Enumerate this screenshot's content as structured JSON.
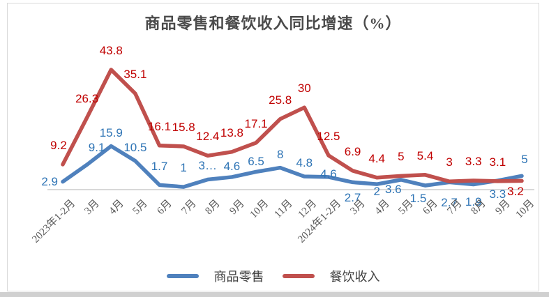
{
  "title": "商品零售和餐饮收入同比增速（%）",
  "colors": {
    "blue_line": "#4F81BD",
    "red_line": "#C0504D",
    "blue_label": "#2E74B5",
    "red_label": "#C00000",
    "axis_line": "#d8d8d8",
    "axis_text": "#595959",
    "title_text": "#4a4a4a",
    "frame_border": "#d9d9d9",
    "bottom_strip": "#d0d0d0"
  },
  "chart_data": {
    "type": "line",
    "title": "商品零售和餐饮收入同比增速（%）",
    "categories": [
      "2023年1-2月",
      "3月",
      "4月",
      "5月",
      "6月",
      "7月",
      "8月",
      "9月",
      "10月",
      "11月",
      "12月",
      "2024年1-2月",
      "3月",
      "4月",
      "5月",
      "6月",
      "7月",
      "8月",
      "9月",
      "10月"
    ],
    "series": [
      {
        "name": "商品零售",
        "color": "#4F81BD",
        "label_color": "#2E74B5",
        "values": [
          2.9,
          9.1,
          15.9,
          10.5,
          1.7,
          1,
          3.7,
          4.6,
          6.5,
          8,
          4.8,
          4.6,
          2.7,
          2,
          3.6,
          1.5,
          2.7,
          1.9,
          3.3,
          5
        ],
        "labels": [
          "2.9",
          "9.1",
          "15.9",
          "10.5",
          "1.7",
          "1",
          "3…",
          "4.6",
          "6.5",
          "8",
          "4.8",
          "4.6",
          "2.7",
          "2",
          "3.6",
          "1.5",
          "2.7",
          "1.9",
          "3.3",
          "5"
        ],
        "label_placement": [
          "left",
          "above",
          "above",
          "above",
          "above",
          "above",
          "above",
          "above",
          "above",
          "above",
          "above",
          "above",
          "below",
          "below",
          "below",
          "below",
          "below",
          "below",
          "below",
          "above"
        ]
      },
      {
        "name": "餐饮收入",
        "color": "#C0504D",
        "label_color": "#C00000",
        "values": [
          9.2,
          26.3,
          43.8,
          35.1,
          16.1,
          15.8,
          12.4,
          13.8,
          17.1,
          25.8,
          30,
          12.5,
          6.9,
          4.4,
          5,
          5.4,
          3,
          3.3,
          3.1,
          3.2
        ],
        "labels": [
          "9.2",
          "26.3",
          "43.8",
          "35.1",
          "16.1",
          "15.8",
          "12.4",
          "13.8",
          "17.1",
          "25.8",
          "30",
          "12.5",
          "6.9",
          "4.4",
          "5",
          "5.4",
          "3",
          "3.3",
          "3.1",
          "3.2"
        ],
        "label_placement": [
          "above",
          "above",
          "above",
          "above",
          "above",
          "above",
          "above",
          "above",
          "above",
          "above",
          "above",
          "above",
          "above",
          "above",
          "above",
          "above",
          "above",
          "above",
          "above",
          "below"
        ]
      }
    ],
    "xlabel": "",
    "ylabel": "",
    "ylim": [
      0,
      46
    ],
    "grid": false,
    "legend_position": "bottom",
    "x_axis_visible": true,
    "y_axis_visible": false
  }
}
